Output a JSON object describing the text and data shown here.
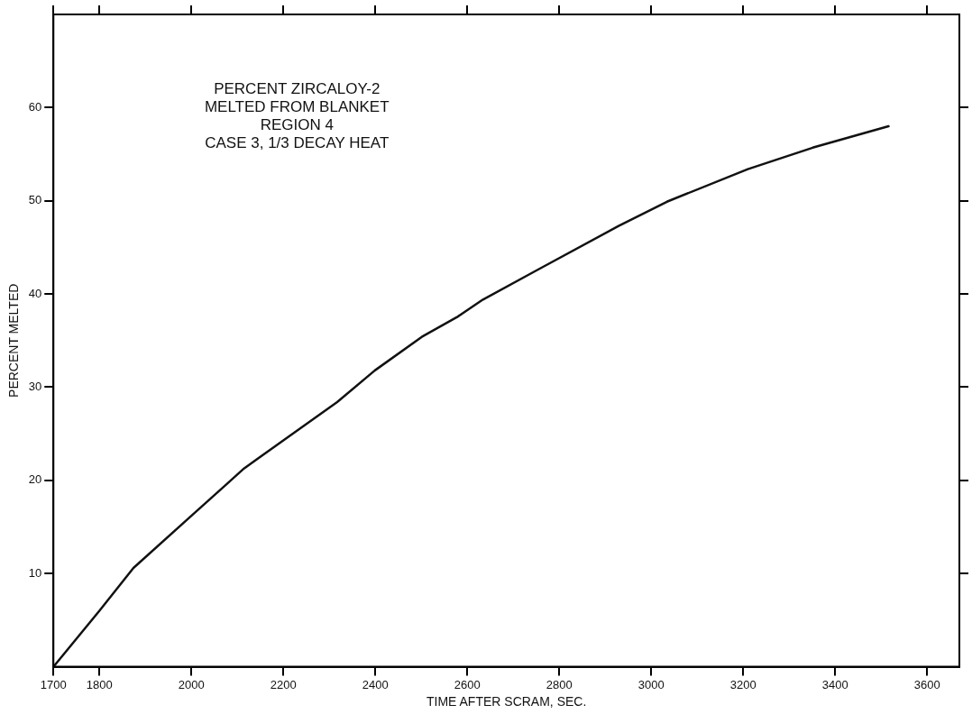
{
  "chart_data": {
    "type": "line",
    "xlabel": "TIME AFTER SCRAM, SEC.",
    "ylabel": "PERCENT MELTED",
    "annotations": [
      "PERCENT ZIRCALOY-2",
      "MELTED FROM BLANKET",
      "REGION 4",
      "CASE 3, 1/3 DECAY HEAT"
    ],
    "x": [
      1700,
      1800,
      1874,
      2000,
      2115,
      2200,
      2317,
      2399,
      2501,
      2577,
      2634,
      2753,
      2929,
      3034,
      3210,
      3351,
      3516
    ],
    "series": [
      {
        "color": "#111111",
        "values": [
          0,
          6.0,
          10.6,
          16.2,
          21.3,
          24.3,
          28.4,
          31.8,
          35.4,
          37.5,
          39.4,
          42.6,
          47.3,
          49.9,
          53.4,
          55.7,
          58.0
        ]
      }
    ],
    "xlim": [
      1700,
      3670
    ],
    "xticks": [
      1700,
      1800,
      2000,
      2200,
      2400,
      2600,
      2800,
      3000,
      3200,
      3400,
      3600
    ],
    "ylim": [
      0,
      70
    ],
    "yticks": [
      10,
      20,
      30,
      40,
      50,
      60
    ],
    "grid": false,
    "legend": false,
    "marker": "none",
    "line_style": "solid"
  }
}
